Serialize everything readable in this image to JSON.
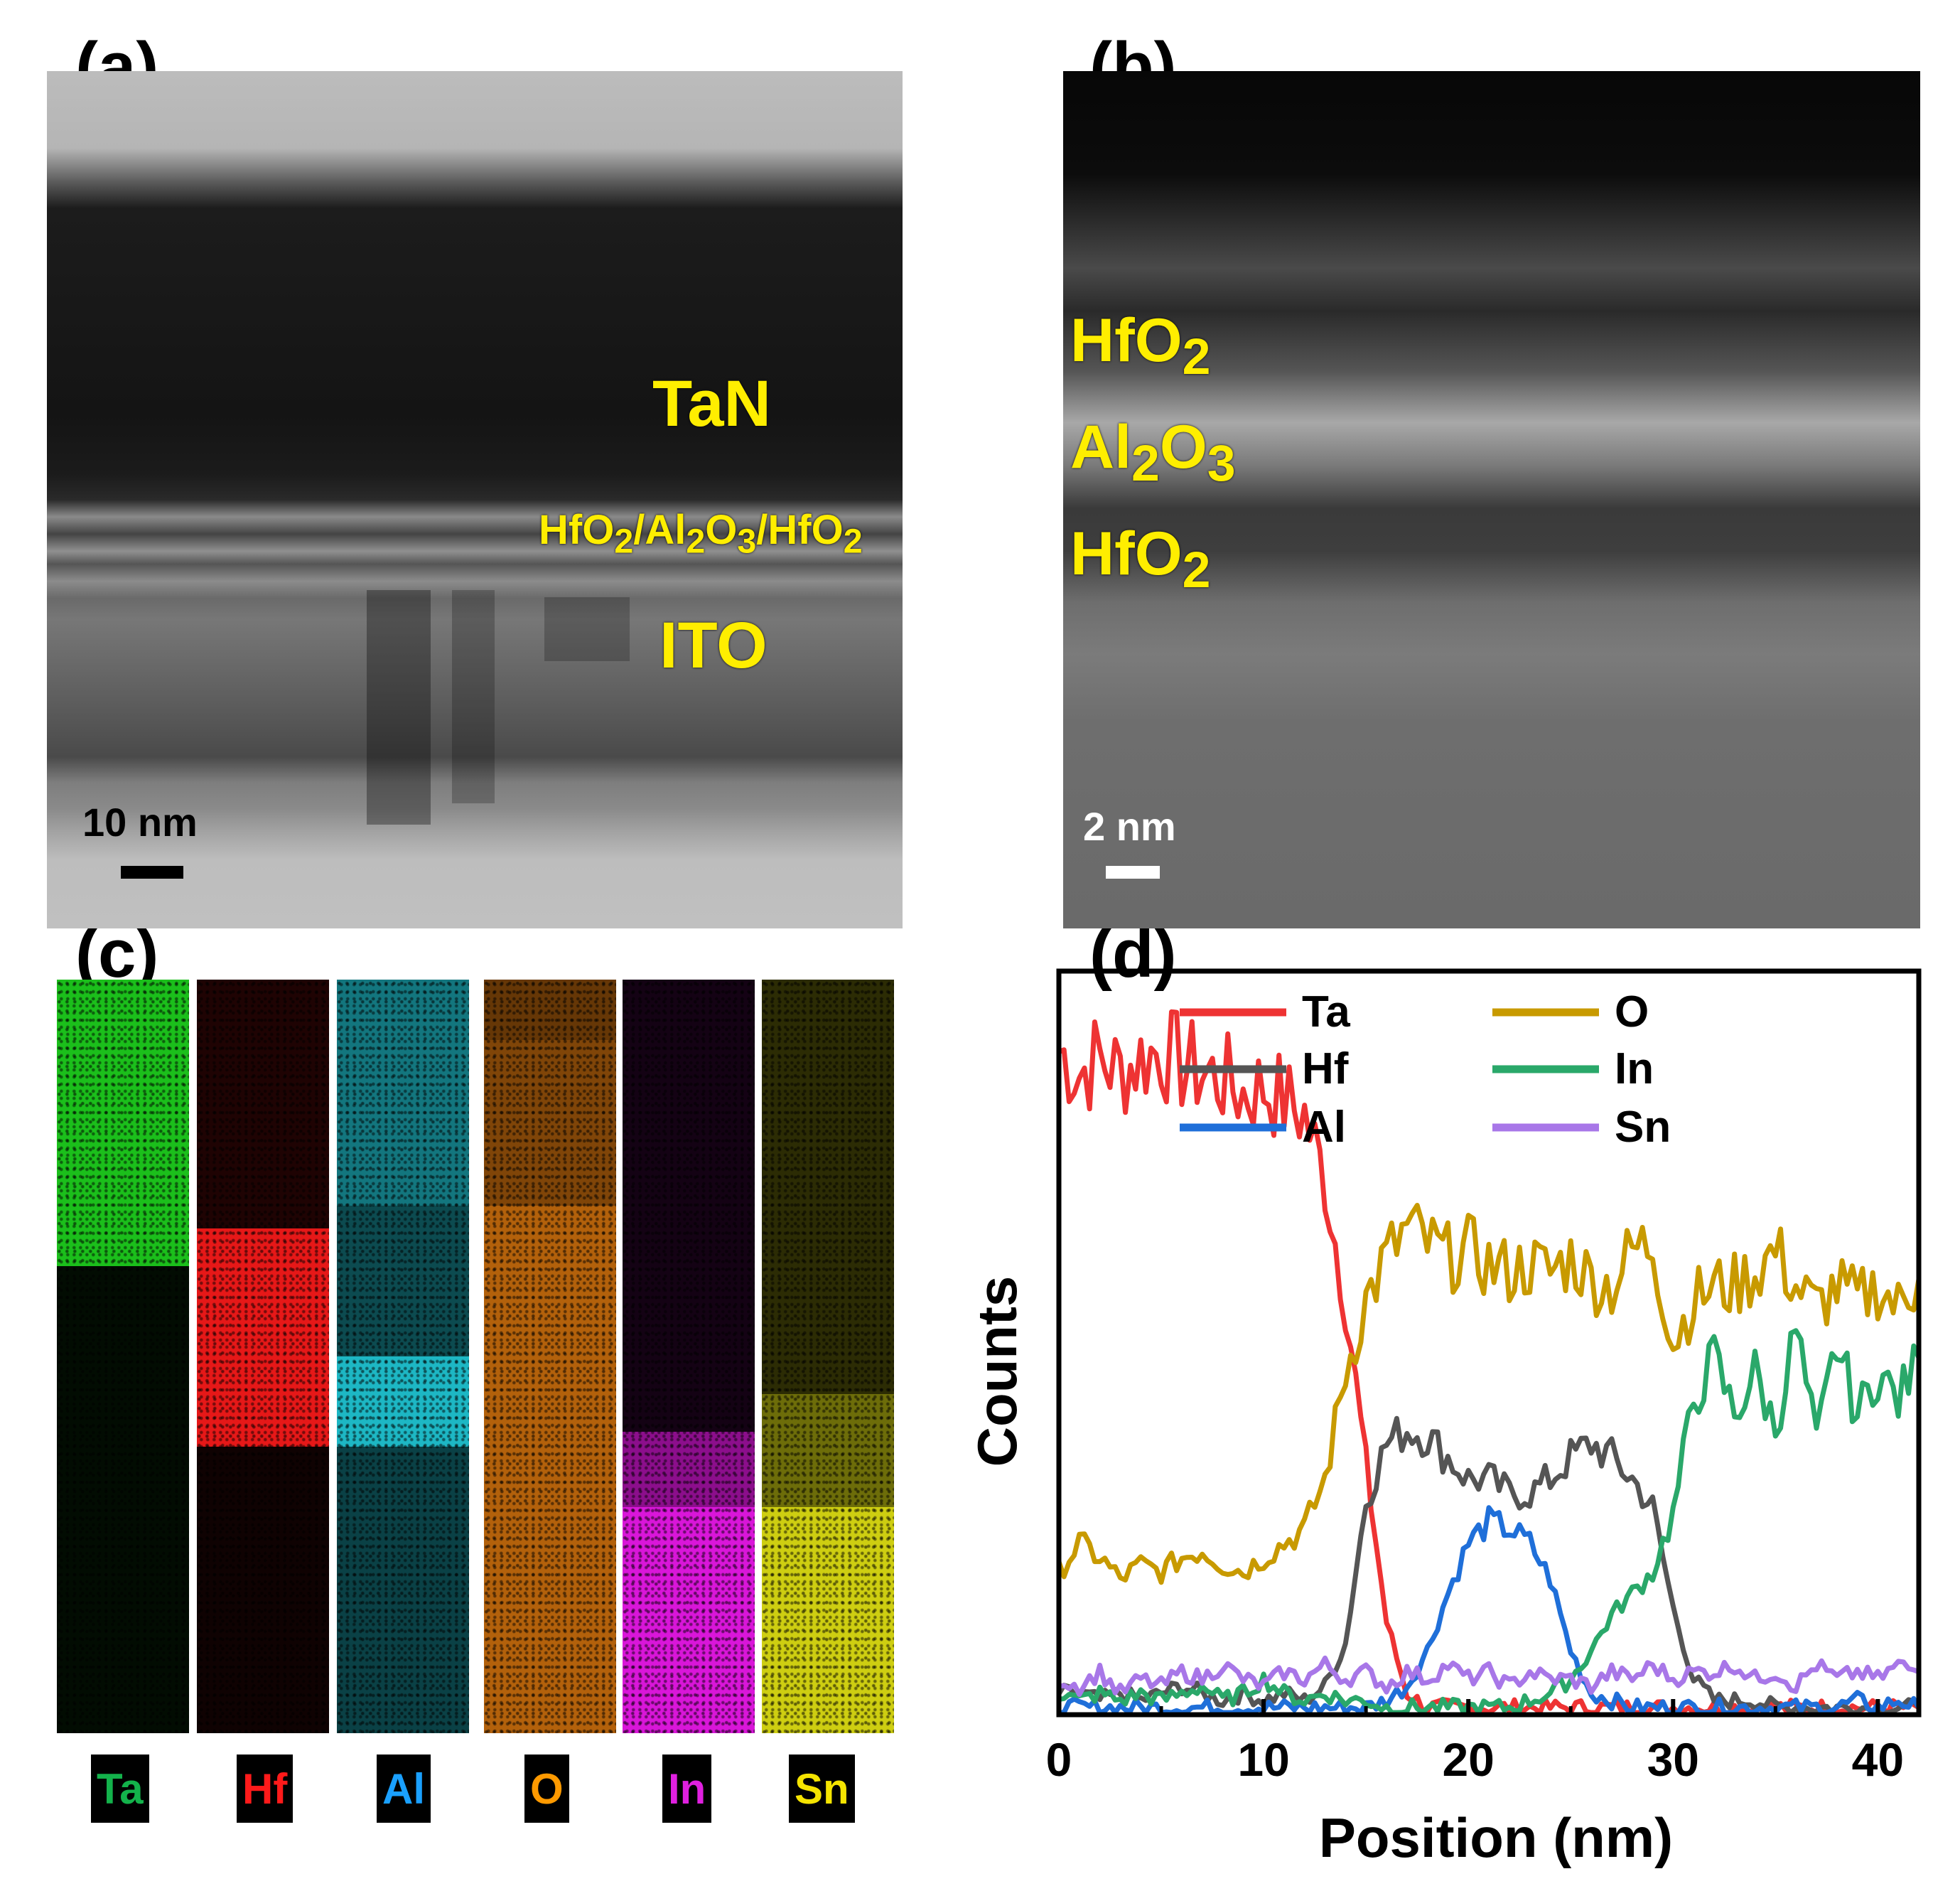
{
  "panels": {
    "a": {
      "label": "(a)",
      "layers": {
        "top": "TaN",
        "stack_html": "HfO<sub>2</sub>/Al<sub>2</sub>O<sub>3</sub>/HfO<sub>2</sub>",
        "bottom": "ITO"
      },
      "scale_bar": "10 nm"
    },
    "b": {
      "label": "(b)",
      "layers_html": [
        "HfO<sub>2</sub>",
        "Al<sub>2</sub>O<sub>3</sub>",
        "HfO<sub>2</sub>"
      ],
      "scale_bar": "2 nm"
    },
    "c": {
      "label": "(c)",
      "maps": [
        {
          "element": "Ta",
          "color": "#1ed41e"
        },
        {
          "element": "Hf",
          "color": "#ff1a1a"
        },
        {
          "element": "Al",
          "color": "#22d7e6"
        },
        {
          "element": "O",
          "color": "#ff8a10"
        },
        {
          "element": "In",
          "color": "#ff1aff"
        },
        {
          "element": "Sn",
          "color": "#f2f214"
        }
      ],
      "tag_colors": {
        "Ta": "#13b24b",
        "Hf": "#ff1a1a",
        "Al": "#1aa0ff",
        "O": "#ff9a00",
        "In": "#e020e0",
        "Sn": "#f5e400"
      }
    },
    "d": {
      "label": "(d)"
    }
  },
  "chart_data": {
    "type": "line",
    "title": "",
    "xlabel": "Position (nm)",
    "ylabel": "Counts",
    "xlim": [
      0,
      42
    ],
    "ylim": [
      0,
      100
    ],
    "xticks": [
      0,
      10,
      20,
      30,
      40
    ],
    "legend_position": "top",
    "series": [
      {
        "name": "Ta",
        "color": "#ee3333",
        "x": [
          0,
          1,
          2,
          3,
          4,
          5,
          6,
          7,
          8,
          9,
          10,
          11,
          12,
          13,
          14,
          15,
          16,
          17,
          18,
          19,
          20,
          21,
          22,
          23,
          24,
          25,
          26,
          27,
          28,
          29,
          30,
          31,
          32,
          33,
          34,
          35,
          36,
          37,
          38,
          39,
          40,
          41,
          42
        ],
        "y": [
          93,
          90,
          92,
          90,
          92,
          93,
          91,
          90,
          89,
          87,
          88,
          86,
          84,
          75,
          58,
          35,
          13,
          3,
          1,
          1,
          1,
          1,
          1,
          1,
          1,
          1,
          1,
          1,
          1,
          1,
          1,
          1,
          1,
          1,
          1,
          1,
          1,
          1,
          1,
          1,
          1,
          1,
          1
        ]
      },
      {
        "name": "Hf",
        "color": "#555555",
        "x": [
          0,
          1,
          2,
          3,
          4,
          5,
          6,
          7,
          8,
          9,
          10,
          11,
          12,
          13,
          14,
          15,
          16,
          17,
          18,
          19,
          20,
          21,
          22,
          23,
          24,
          25,
          26,
          27,
          28,
          29,
          30,
          31,
          32,
          33,
          34,
          35,
          36,
          37,
          38,
          39,
          40,
          41,
          42
        ],
        "y": [
          3,
          3,
          2,
          3,
          2,
          3,
          4,
          3,
          2,
          3,
          2,
          3,
          2,
          4,
          10,
          30,
          38,
          40,
          39,
          36,
          33,
          33,
          31,
          31,
          33,
          36,
          38,
          36,
          33,
          29,
          15,
          5,
          2,
          2,
          2,
          1,
          1,
          1,
          1,
          1,
          1,
          1,
          1
        ]
      },
      {
        "name": "Al",
        "color": "#1f6fd9",
        "x": [
          0,
          1,
          2,
          3,
          4,
          5,
          6,
          7,
          8,
          9,
          10,
          11,
          12,
          13,
          14,
          15,
          16,
          17,
          18,
          19,
          20,
          21,
          22,
          23,
          24,
          25,
          26,
          27,
          28,
          29,
          30,
          31,
          32,
          33,
          34,
          35,
          36,
          37,
          38,
          39,
          40,
          41,
          42
        ],
        "y": [
          1,
          1,
          1,
          1,
          1,
          1,
          1,
          1,
          1,
          1,
          1,
          1,
          1,
          1,
          1,
          1,
          2,
          4,
          9,
          17,
          24,
          27,
          26,
          24,
          19,
          9,
          3,
          2,
          1,
          1,
          1,
          1,
          1,
          1,
          1,
          1,
          1,
          1,
          1,
          2,
          1,
          2,
          1
        ]
      },
      {
        "name": "O",
        "color": "#c89a00",
        "x": [
          0,
          1,
          2,
          3,
          4,
          5,
          6,
          7,
          8,
          9,
          10,
          11,
          12,
          13,
          14,
          15,
          16,
          17,
          18,
          19,
          20,
          21,
          22,
          23,
          24,
          25,
          26,
          27,
          28,
          29,
          30,
          31,
          32,
          33,
          34,
          35,
          36,
          37,
          38,
          39,
          40,
          41,
          42
        ],
        "y": [
          20,
          24,
          22,
          19,
          21,
          20,
          22,
          23,
          21,
          20,
          22,
          24,
          26,
          33,
          48,
          58,
          64,
          68,
          66,
          64,
          65,
          63,
          62,
          63,
          62,
          64,
          61,
          60,
          65,
          66,
          52,
          58,
          60,
          60,
          62,
          65,
          60,
          57,
          60,
          58,
          60,
          57,
          61
        ]
      },
      {
        "name": "In",
        "color": "#2aa86a",
        "x": [
          0,
          1,
          2,
          3,
          4,
          5,
          6,
          7,
          8,
          9,
          10,
          11,
          12,
          13,
          14,
          15,
          16,
          17,
          18,
          19,
          20,
          21,
          22,
          23,
          24,
          25,
          26,
          27,
          28,
          29,
          30,
          31,
          32,
          33,
          34,
          35,
          36,
          37,
          38,
          39,
          40,
          41,
          42
        ],
        "y": [
          3,
          2,
          3,
          2,
          3,
          2,
          3,
          4,
          2,
          3,
          5,
          3,
          2,
          3,
          2,
          2,
          1,
          1,
          1,
          1,
          1,
          1,
          1,
          2,
          3,
          5,
          9,
          14,
          17,
          20,
          28,
          44,
          50,
          42,
          48,
          40,
          54,
          38,
          52,
          42,
          48,
          44,
          50
        ]
      },
      {
        "name": "Sn",
        "color": "#a877e8",
        "x": [
          0,
          1,
          2,
          3,
          4,
          5,
          6,
          7,
          8,
          9,
          10,
          11,
          12,
          13,
          14,
          15,
          16,
          17,
          18,
          19,
          20,
          21,
          22,
          23,
          24,
          25,
          26,
          27,
          28,
          29,
          30,
          31,
          32,
          33,
          34,
          35,
          36,
          37,
          38,
          39,
          40,
          41,
          42
        ],
        "y": [
          5,
          4,
          6,
          3,
          5,
          4,
          6,
          5,
          7,
          5,
          4,
          6,
          5,
          7,
          5,
          6,
          4,
          6,
          5,
          7,
          5,
          6,
          4,
          6,
          5,
          5,
          4,
          6,
          5,
          7,
          5,
          6,
          6,
          7,
          5,
          6,
          4,
          7,
          5,
          6,
          5,
          7,
          6
        ]
      }
    ]
  }
}
